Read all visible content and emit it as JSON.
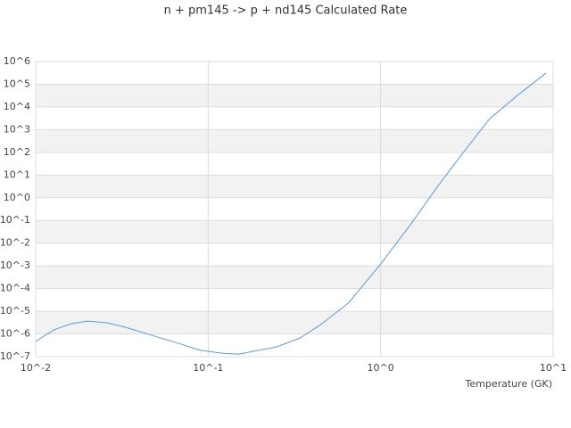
{
  "chart_data": {
    "type": "line",
    "title": "n + pm145 -> p + nd145 Calculated Rate",
    "x_label": "Temperature (GK)",
    "xscale": "log",
    "yscale": "log",
    "xlim": [
      0.01,
      10
    ],
    "ylim": [
      1e-07,
      1000000.0
    ],
    "xticks": [
      {
        "value": 0.01,
        "label": "10^-2"
      },
      {
        "value": 0.1,
        "label": "10^-1"
      },
      {
        "value": 1,
        "label": "10^0"
      },
      {
        "value": 10,
        "label": "10^1"
      }
    ],
    "yticks": [
      {
        "value": 1e-07,
        "label": "10^-7"
      },
      {
        "value": 1e-06,
        "label": "10^-6"
      },
      {
        "value": 1e-05,
        "label": "10^-5"
      },
      {
        "value": 0.0001,
        "label": "10^-4"
      },
      {
        "value": 0.001,
        "label": "10^-3"
      },
      {
        "value": 0.01,
        "label": "10^-2"
      },
      {
        "value": 0.1,
        "label": "10^-1"
      },
      {
        "value": 1,
        "label": "10^0"
      },
      {
        "value": 10,
        "label": "10^1"
      },
      {
        "value": 100,
        "label": "10^2"
      },
      {
        "value": 1000,
        "label": "10^3"
      },
      {
        "value": 10000,
        "label": "10^4"
      },
      {
        "value": 100000,
        "label": "10^5"
      },
      {
        "value": 1000000,
        "label": "10^6"
      }
    ],
    "grid": true,
    "band_color": "#f2f2f2",
    "series": [
      {
        "color": "#5b9bd5",
        "x": [
          0.01,
          0.0127,
          0.016,
          0.02,
          0.026,
          0.033,
          0.047,
          0.067,
          0.09,
          0.122,
          0.151,
          0.196,
          0.25,
          0.34,
          0.45,
          0.65,
          1.0,
          1.5,
          2.14,
          3.04,
          4.3,
          6.2,
          9.1
        ],
        "values": [
          4.7e-07,
          1.5e-06,
          2.8e-06,
          3.7e-06,
          3.1e-06,
          2e-06,
          8.8e-07,
          3.9e-07,
          1.9e-07,
          1.4e-07,
          1.3e-07,
          1.9e-07,
          2.7e-07,
          6.6e-07,
          2.6e-06,
          2.3e-05,
          0.0012,
          0.071,
          3.2,
          107,
          3100,
          32000,
          310000
        ]
      }
    ]
  }
}
